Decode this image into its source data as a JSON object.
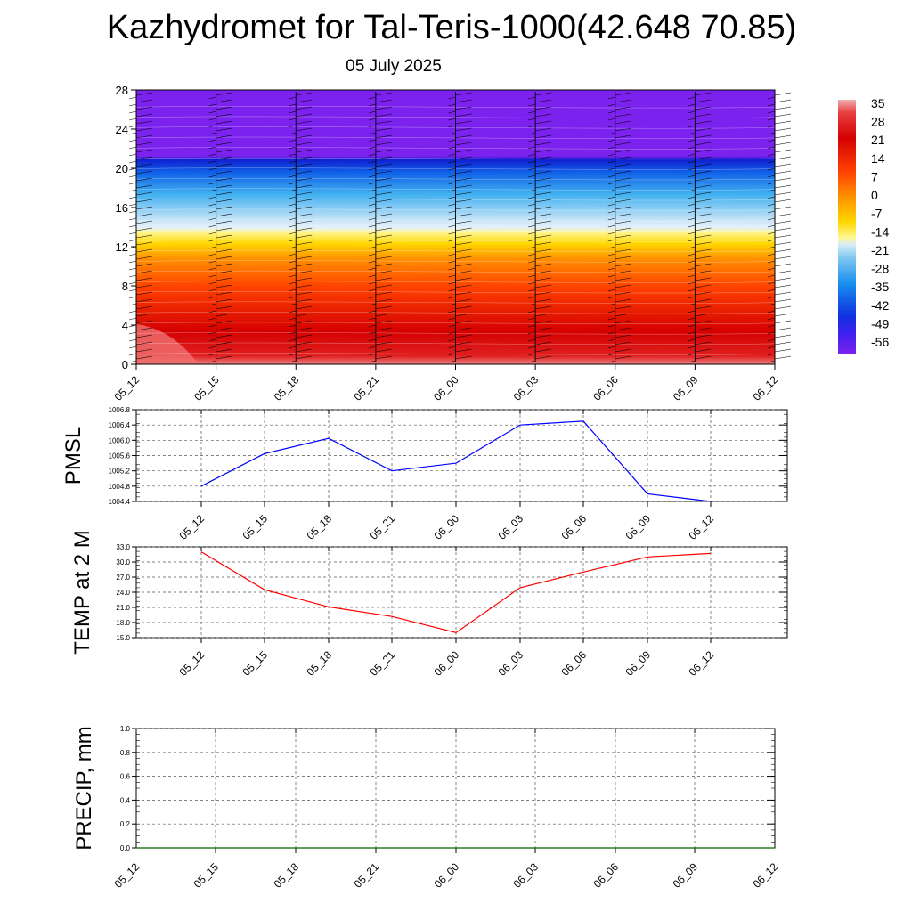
{
  "header": {
    "title": "Kazhydromet for Tal-Teris-1000(42.648 70.85)",
    "subtitle": "05 July 2025"
  },
  "colors": {
    "pmsl_line": "#0000ff",
    "temp_line": "#ff0000",
    "precip_line": "#006400",
    "grid": "#555555"
  },
  "chart_data": [
    {
      "type": "heatmap",
      "title": "",
      "x": [
        "05_12",
        "05_15",
        "05_18",
        "05_21",
        "06_00",
        "06_03",
        "06_06",
        "06_09",
        "06_12"
      ],
      "ylim": [
        0,
        28
      ],
      "yticks": [
        0,
        4,
        8,
        12,
        16,
        20,
        24,
        28
      ],
      "xlabel": "",
      "ylabel": "",
      "description_layers": [
        {
          "ylevel_range": [
            0,
            13.5
          ],
          "values_range": [
            35,
            7
          ]
        },
        {
          "ylevel_range": [
            13.5,
            15
          ],
          "values_range": [
            0,
            -14
          ]
        },
        {
          "ylevel_range": [
            15,
            21.5
          ],
          "values_range": [
            -14,
            -56
          ]
        },
        {
          "ylevel_range": [
            21.5,
            28
          ],
          "values_range": [
            -56,
            -56
          ]
        }
      ],
      "colorbar": {
        "labels": [
          "35",
          "28",
          "21",
          "14",
          "7",
          "0",
          "-7",
          "-14",
          "-21",
          "-28",
          "-35",
          "-42",
          "-49",
          "-56"
        ],
        "values": [
          35,
          28,
          21,
          14,
          7,
          0,
          -7,
          -14,
          -21,
          -28,
          -35,
          -42,
          -49,
          -56
        ]
      },
      "wind_barb_times": [
        "05_12",
        "05_15",
        "05_18",
        "05_21",
        "06_00",
        "06_03",
        "06_06",
        "06_09",
        "06_12"
      ]
    },
    {
      "type": "line",
      "ylabel": "PMSL",
      "x": [
        "05_12",
        "05_15",
        "05_18",
        "05_21",
        "06_00",
        "06_03",
        "06_06",
        "06_09",
        "06_12"
      ],
      "ylim": [
        1004.4,
        1006.8
      ],
      "yticks": [
        "1004.4",
        "1004.8",
        "1005.2",
        "1005.6",
        "1006.0",
        "1006.4",
        "1006.8"
      ],
      "series": [
        {
          "values": [
            1004.8,
            1005.65,
            1006.05,
            1005.2,
            1005.4,
            1006.4,
            1006.5,
            1004.6,
            1004.4
          ]
        }
      ]
    },
    {
      "type": "line",
      "ylabel": "TEMP at 2 M",
      "x": [
        "05_12",
        "05_15",
        "05_18",
        "05_21",
        "06_00",
        "06_03",
        "06_06",
        "06_09",
        "06_12"
      ],
      "ylim": [
        15.0,
        33.0
      ],
      "yticks": [
        "15.0",
        "18.0",
        "21.0",
        "24.0",
        "27.0",
        "30.0",
        "33.0"
      ],
      "series": [
        {
          "values": [
            32.0,
            24.5,
            21.1,
            19.2,
            16.0,
            24.9,
            28.0,
            31.0,
            31.7
          ]
        }
      ]
    },
    {
      "type": "line",
      "ylabel": "PRECIP, mm",
      "x": [
        "05_12",
        "05_15",
        "05_18",
        "05_21",
        "06_00",
        "06_03",
        "06_06",
        "06_09",
        "06_12"
      ],
      "ylim": [
        0.0,
        1.0
      ],
      "yticks": [
        "0.0",
        "0.2",
        "0.4",
        "0.6",
        "0.8",
        "1.0"
      ],
      "series": [
        {
          "values": [
            0,
            0,
            0,
            0,
            0,
            0,
            0,
            0,
            0
          ]
        }
      ]
    }
  ]
}
